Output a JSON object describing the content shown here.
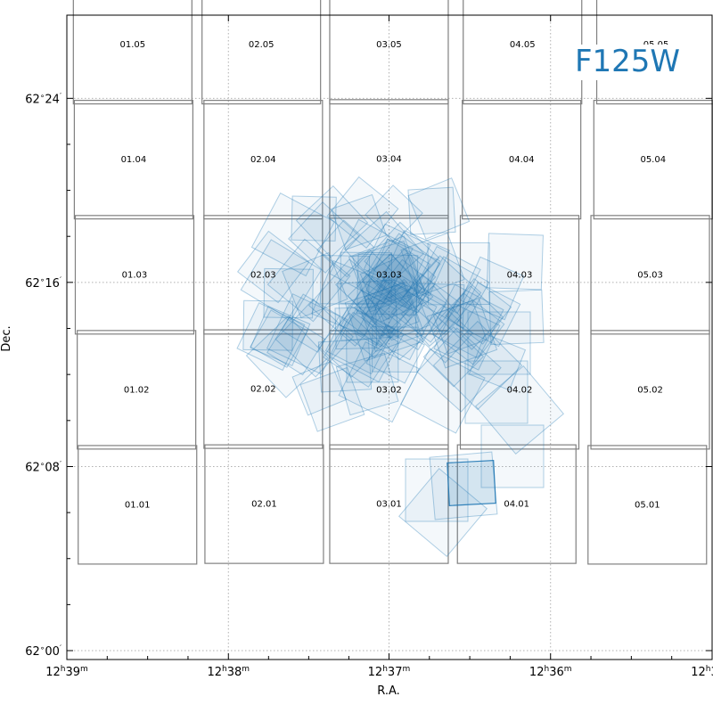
{
  "chart_data": {
    "type": "scatter",
    "title": "F125W",
    "xlabel": "R.A.",
    "ylabel": "Dec.",
    "grid": true,
    "xlim": [
      12.65,
      12.5833
    ],
    "ylim": [
      62.0,
      62.4667
    ],
    "x_ticks": [
      {
        "value": 12.65,
        "h": "12",
        "m": "39"
      },
      {
        "value": 12.6333,
        "h": "12",
        "m": "38"
      },
      {
        "value": 12.6167,
        "h": "12",
        "m": "37"
      },
      {
        "value": 12.6,
        "h": "12",
        "m": "36"
      },
      {
        "value": 12.5833,
        "h": "12",
        "m": "35"
      }
    ],
    "y_ticks": [
      {
        "value": 62.0,
        "deg": "62",
        "min": "00"
      },
      {
        "value": 62.1333,
        "deg": "62",
        "min": "08"
      },
      {
        "value": 62.2667,
        "deg": "62",
        "min": "16"
      },
      {
        "value": 62.4,
        "deg": "62",
        "min": "24"
      }
    ],
    "tiles": [
      {
        "label": "01.05",
        "ra": 12.6432,
        "dec": 62.4389
      },
      {
        "label": "02.05",
        "ra": 12.6299,
        "dec": 62.4389
      },
      {
        "label": "03.05",
        "ra": 12.6167,
        "dec": 62.4389
      },
      {
        "label": "04.05",
        "ra": 12.6029,
        "dec": 62.4389
      },
      {
        "label": "05.05",
        "ra": 12.5891,
        "dec": 62.4389
      },
      {
        "label": "01.04",
        "ra": 12.6431,
        "dec": 62.3556
      },
      {
        "label": "02.04",
        "ra": 12.6297,
        "dec": 62.3556
      },
      {
        "label": "03.04",
        "ra": 12.6167,
        "dec": 62.3561
      },
      {
        "label": "04.04",
        "ra": 12.603,
        "dec": 62.3556
      },
      {
        "label": "05.04",
        "ra": 12.5894,
        "dec": 62.3556
      },
      {
        "label": "01.03",
        "ra": 12.643,
        "dec": 62.2722
      },
      {
        "label": "02.03",
        "ra": 12.6297,
        "dec": 62.2722
      },
      {
        "label": "03.03",
        "ra": 12.6167,
        "dec": 62.2722
      },
      {
        "label": "04.03",
        "ra": 12.6032,
        "dec": 62.2722
      },
      {
        "label": "05.03",
        "ra": 12.5897,
        "dec": 62.2722
      },
      {
        "label": "01.02",
        "ra": 12.6428,
        "dec": 62.1889
      },
      {
        "label": "02.02",
        "ra": 12.6297,
        "dec": 62.1894
      },
      {
        "label": "03.02",
        "ra": 12.6167,
        "dec": 62.1889
      },
      {
        "label": "04.02",
        "ra": 12.6032,
        "dec": 62.1889
      },
      {
        "label": "05.02",
        "ra": 12.5897,
        "dec": 62.1889
      },
      {
        "label": "01.01",
        "ra": 12.6427,
        "dec": 62.1056
      },
      {
        "label": "02.01",
        "ra": 12.6296,
        "dec": 62.1061
      },
      {
        "label": "03.01",
        "ra": 12.6167,
        "dec": 62.1061
      },
      {
        "label": "04.01",
        "ra": 12.6035,
        "dec": 62.1061
      },
      {
        "label": "05.01",
        "ra": 12.59,
        "dec": 62.1056
      }
    ],
    "pointing_center": {
      "ra": 12.6164,
      "dec": 62.2419
    }
  },
  "colors": {
    "tile": "#808080",
    "exposure": "#1f77b4",
    "grid": "#b0b0b0",
    "title": "#1f77b4"
  }
}
